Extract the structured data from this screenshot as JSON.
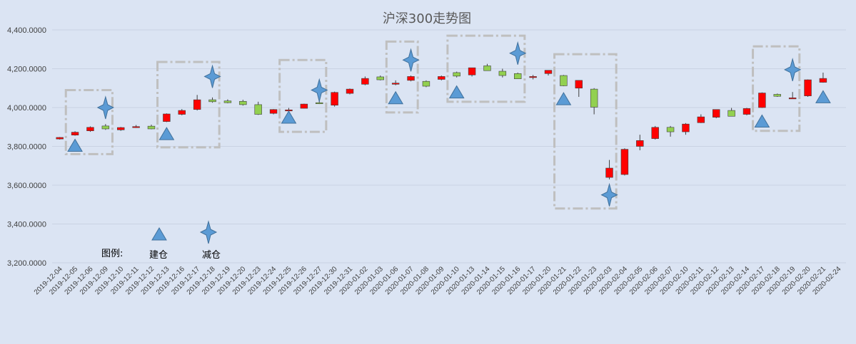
{
  "chart_data": {
    "type": "candlestick",
    "title": "沪深300走势图",
    "ylim": [
      3200,
      4400
    ],
    "yticks": [
      "3,200.0000",
      "3,400.0000",
      "3,600.0000",
      "3,800.0000",
      "4,000.0000",
      "4,200.0000",
      "4,400.0000"
    ],
    "categories": [
      "2019-12-04",
      "2019-12-05",
      "2019-12-06",
      "2019-12-09",
      "2019-12-10",
      "2019-12-11",
      "2019-12-12",
      "2019-12-13",
      "2019-12-16",
      "2019-12-17",
      "2019-12-18",
      "2019-12-19",
      "2019-12-20",
      "2019-12-23",
      "2019-12-24",
      "2019-12-25",
      "2019-12-26",
      "2019-12-27",
      "2019-12-30",
      "2019-12-31",
      "2020-01-02",
      "2020-01-03",
      "2020-01-06",
      "2020-01-07",
      "2020-01-08",
      "2020-01-09",
      "2020-01-10",
      "2020-01-13",
      "2020-01-14",
      "2020-01-15",
      "2020-01-16",
      "2020-01-17",
      "2020-01-20",
      "2020-01-21",
      "2020-01-22",
      "2020-01-23",
      "2020-02-03",
      "2020-02-04",
      "2020-02-05",
      "2020-02-06",
      "2020-02-07",
      "2020-02-10",
      "2020-02-11",
      "2020-02-12",
      "2020-02-13",
      "2020-02-14",
      "2020-02-17",
      "2020-02-18",
      "2020-02-19",
      "2020-02-20",
      "2020-02-21",
      "2020-02-24"
    ],
    "ohlc": [
      [
        3838,
        3848,
        3835,
        3846
      ],
      [
        3858,
        3878,
        3855,
        3873
      ],
      [
        3880,
        3903,
        3875,
        3898
      ],
      [
        3905,
        3915,
        3885,
        3890
      ],
      [
        3885,
        3900,
        3880,
        3897
      ],
      [
        3902,
        3910,
        3895,
        3902
      ],
      [
        3904,
        3912,
        3888,
        3890
      ],
      [
        3928,
        3970,
        3925,
        3967
      ],
      [
        3965,
        3992,
        3960,
        3985
      ],
      [
        3990,
        4065,
        3985,
        4040
      ],
      [
        4040,
        4052,
        4025,
        4030
      ],
      [
        4034,
        4042,
        4022,
        4025
      ],
      [
        4032,
        4040,
        4010,
        4015
      ],
      [
        4015,
        4030,
        3962,
        3965
      ],
      [
        3970,
        3992,
        3965,
        3990
      ],
      [
        3988,
        3998,
        3980,
        3988
      ],
      [
        3996,
        4020,
        3995,
        4018
      ],
      [
        4025,
        4040,
        4018,
        4020
      ],
      [
        4012,
        4082,
        4005,
        4078
      ],
      [
        4073,
        4098,
        4068,
        4095
      ],
      [
        4120,
        4160,
        4115,
        4150
      ],
      [
        4158,
        4165,
        4140,
        4143
      ],
      [
        4120,
        4140,
        4115,
        4126
      ],
      [
        4140,
        4165,
        4135,
        4160
      ],
      [
        4135,
        4140,
        4105,
        4110
      ],
      [
        4145,
        4165,
        4140,
        4160
      ],
      [
        4180,
        4185,
        4155,
        4162
      ],
      [
        4168,
        4205,
        4160,
        4205
      ],
      [
        4215,
        4225,
        4190,
        4190
      ],
      [
        4187,
        4200,
        4155,
        4165
      ],
      [
        4175,
        4180,
        4150,
        4148
      ],
      [
        4155,
        4168,
        4145,
        4160
      ],
      [
        4175,
        4190,
        4165,
        4192
      ],
      [
        4165,
        4168,
        4110,
        4112
      ],
      [
        4100,
        4140,
        4055,
        4140
      ],
      [
        4095,
        4100,
        3965,
        4002
      ],
      [
        3640,
        3730,
        3630,
        3688
      ],
      [
        3655,
        3790,
        3650,
        3785
      ],
      [
        3800,
        3860,
        3780,
        3830
      ],
      [
        3840,
        3905,
        3835,
        3898
      ],
      [
        3898,
        3905,
        3850,
        3875
      ],
      [
        3875,
        3920,
        3860,
        3915
      ],
      [
        3922,
        3965,
        3920,
        3952
      ],
      [
        3950,
        3990,
        3945,
        3990
      ],
      [
        3985,
        3998,
        3955,
        3955
      ],
      [
        3965,
        3998,
        3960,
        3995
      ],
      [
        4000,
        4078,
        3998,
        4075
      ],
      [
        4068,
        4072,
        4055,
        4058
      ],
      [
        4050,
        4080,
        4045,
        4050
      ],
      [
        4060,
        4145,
        4055,
        4143
      ],
      [
        4130,
        4180,
        4128,
        4150
      ],
      [
        null,
        null,
        null,
        null
      ]
    ],
    "buy_signals": [
      {
        "x": "2019-12-05",
        "y": 3800
      },
      {
        "x": "2019-12-13",
        "y": 3860
      },
      {
        "x": "2019-12-25",
        "y": 3945
      },
      {
        "x": "2020-01-06",
        "y": 4045
      },
      {
        "x": "2020-01-10",
        "y": 4075
      },
      {
        "x": "2020-01-21",
        "y": 4040
      },
      {
        "x": "2020-02-17",
        "y": 3925
      },
      {
        "x": "2020-02-21",
        "y": 4050
      }
    ],
    "sell_signals": [
      {
        "x": "2019-12-09",
        "y": 4000
      },
      {
        "x": "2019-12-18",
        "y": 4160
      },
      {
        "x": "2019-12-27",
        "y": 4090
      },
      {
        "x": "2020-01-07",
        "y": 4245
      },
      {
        "x": "2020-01-16",
        "y": 4280
      },
      {
        "x": "2020-02-03",
        "y": 3550
      },
      {
        "x": "2020-02-19",
        "y": 4195
      }
    ],
    "boxes": [
      {
        "x0": "2019-12-05",
        "x1": "2019-12-09",
        "y0": 3760,
        "y1": 4090
      },
      {
        "x0": "2019-12-13",
        "x1": "2019-12-18",
        "y0": 3795,
        "y1": 4235
      },
      {
        "x0": "2019-12-25",
        "x1": "2019-12-27",
        "y0": 3875,
        "y1": 4245
      },
      {
        "x0": "2020-01-06",
        "x1": "2020-01-07",
        "y0": 3975,
        "y1": 4340
      },
      {
        "x0": "2020-01-10",
        "x1": "2020-01-16",
        "y0": 4030,
        "y1": 4370
      },
      {
        "x0": "2020-01-21",
        "x1": "2020-02-03",
        "y0": 3480,
        "y1": 4275
      },
      {
        "x0": "2020-02-17",
        "x1": "2020-02-19",
        "y0": 3880,
        "y1": 4315
      }
    ],
    "up_color": "#ff0000",
    "down_color": "#92d050",
    "marker_color": "#5b9bd5",
    "box_color": "#bfbfbf",
    "legend": {
      "label": "图例:",
      "buy_label": "建仓",
      "sell_label": "减仓"
    }
  }
}
